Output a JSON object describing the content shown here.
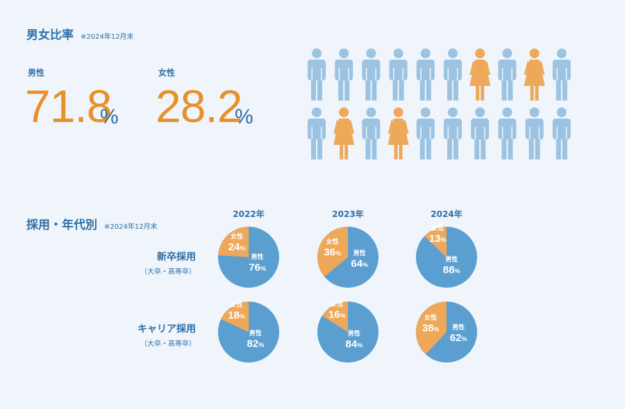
{
  "ratio_section": {
    "title": "男女比率",
    "note": "※2024年12月末",
    "male_label": "男性",
    "male_value": "71.8",
    "female_label": "女性",
    "female_value": "28.2",
    "unit": "%"
  },
  "pictogram": {
    "male_color": "#9dc3e2",
    "female_color": "#eea85a",
    "rows": [
      [
        "m",
        "m",
        "m",
        "m",
        "m",
        "m",
        "f",
        "m",
        "f",
        "m"
      ],
      [
        "m",
        "f",
        "m",
        "f",
        "m",
        "m",
        "m",
        "m",
        "m",
        "m"
      ]
    ]
  },
  "hiring_section": {
    "title": "採用・年代別",
    "note": "※2024年12月末",
    "rows": [
      {
        "label": "新卒採用",
        "sub": "（大卒・高専卒）"
      },
      {
        "label": "キャリア採用",
        "sub": "（大卒・高専卒）"
      }
    ]
  },
  "chart_data": {
    "type": "pie",
    "years": [
      "2022年",
      "2023年",
      "2024年"
    ],
    "male_label": "男性",
    "female_label": "女性",
    "unit": "%",
    "colors": {
      "male": "#5a9fd0",
      "female": "#eea85a"
    },
    "rows": [
      {
        "category": "新卒採用",
        "values": [
          {
            "year": "2022年",
            "male": 76,
            "female": 24
          },
          {
            "year": "2023年",
            "male": 64,
            "female": 36
          },
          {
            "year": "2024年",
            "male": 88,
            "female": 13
          }
        ]
      },
      {
        "category": "キャリア採用",
        "values": [
          {
            "year": "2022年",
            "male": 82,
            "female": 18
          },
          {
            "year": "2023年",
            "male": 84,
            "female": 16
          },
          {
            "year": "2024年",
            "male": 62,
            "female": 38
          }
        ]
      }
    ]
  }
}
